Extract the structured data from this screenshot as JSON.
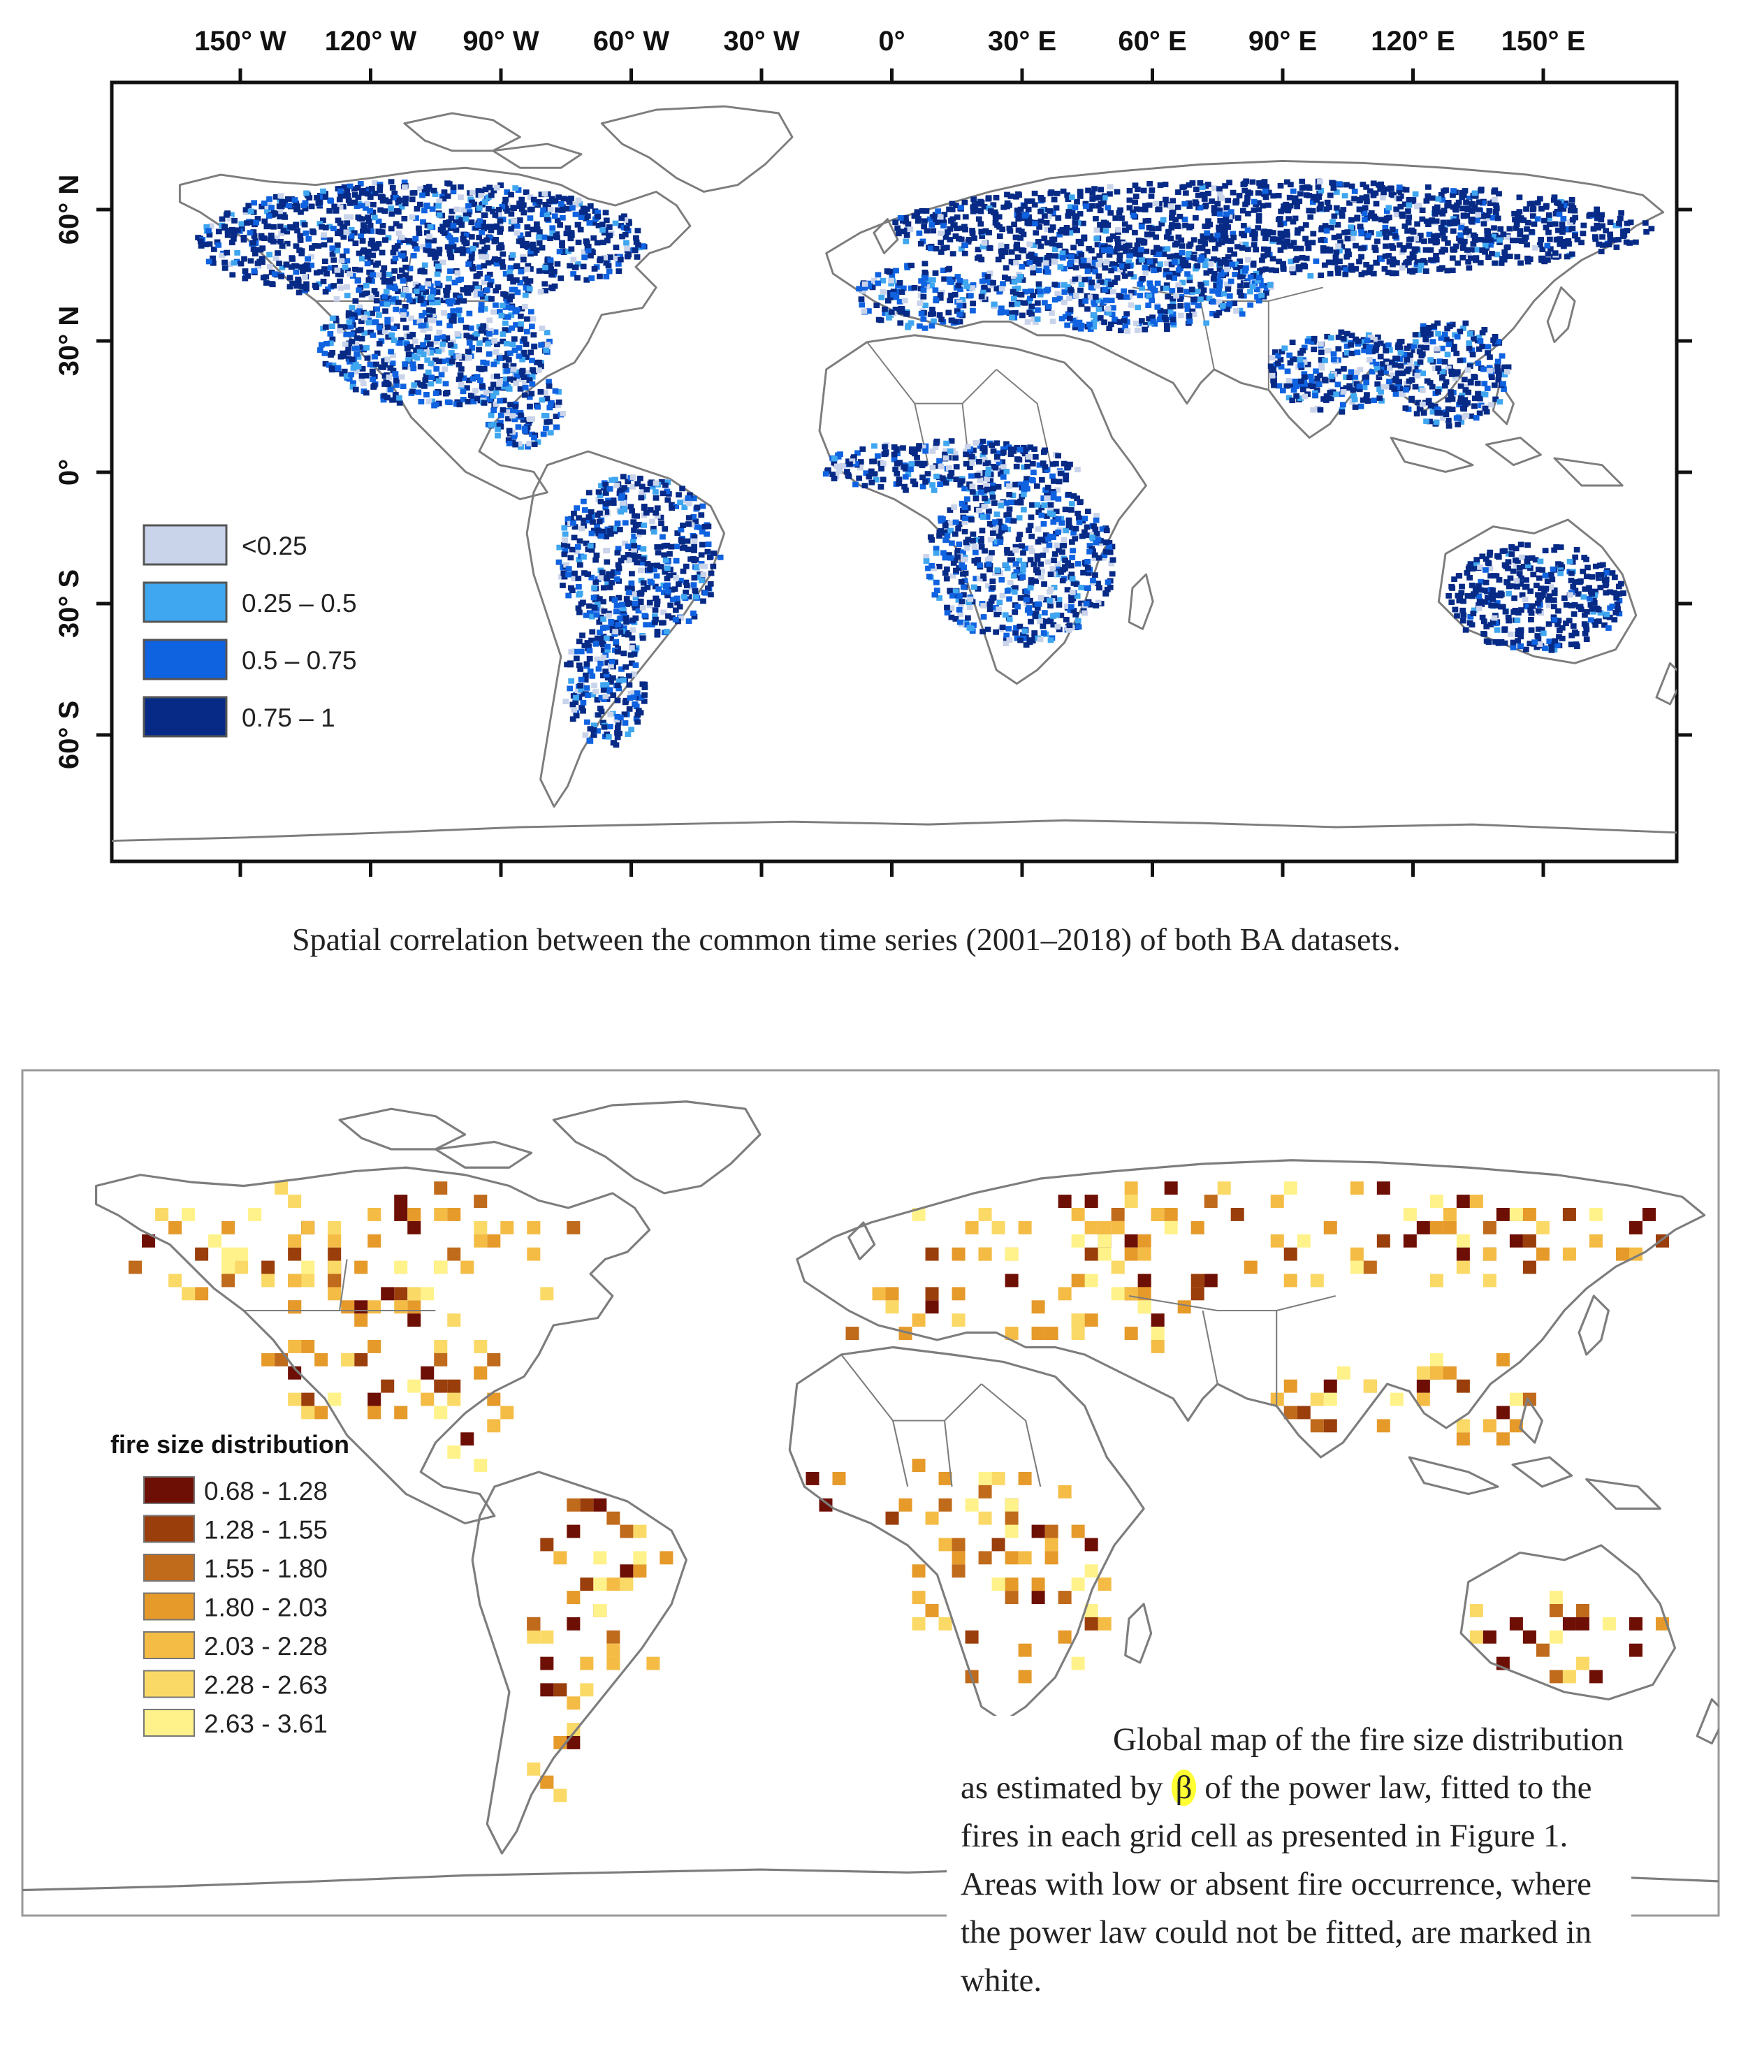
{
  "map1": {
    "x_axis_labels": [
      "150° W",
      "120° W",
      "90° W",
      "60° W",
      "30° W",
      "0°",
      "30° E",
      "60° E",
      "90° E",
      "120° E",
      "150° E"
    ],
    "y_axis_labels": [
      "60° N",
      "30° N",
      "0°",
      "30° S",
      "60° S"
    ],
    "legend": [
      {
        "label": "<0.25",
        "color": "#c9d3ea"
      },
      {
        "label": "0.25 – 0.5",
        "color": "#3fa6f0"
      },
      {
        "label": "0.5 – 0.75",
        "color": "#0f62e0"
      },
      {
        "label": "0.75 – 1",
        "color": "#062a86"
      }
    ],
    "caption": "Spatial correlation between the common time series (2001–2018) of both BA datasets."
  },
  "map2": {
    "legend_title": "fire size distribution",
    "legend": [
      {
        "label": "0.68 - 1.28",
        "color": "#6e0f05"
      },
      {
        "label": "1.28 - 1.55",
        "color": "#9a3e0c"
      },
      {
        "label": "1.55 - 1.80",
        "color": "#c06a1c"
      },
      {
        "label": "1.80 - 2.03",
        "color": "#e59a2a"
      },
      {
        "label": "2.03 - 2.28",
        "color": "#f4bc45"
      },
      {
        "label": "2.28 - 2.63",
        "color": "#fbd966"
      },
      {
        "label": "2.63 - 3.61",
        "color": "#fff28a"
      }
    ],
    "caption": {
      "before": "Global map of the fire size distribution as estimated by ",
      "highlight": "β",
      "after": " of the power law, fitted to the fires in each grid cell as presented in Figure 1. Areas with low or absent fire occurrence, where the power law could not be fitted, are marked in white."
    }
  }
}
